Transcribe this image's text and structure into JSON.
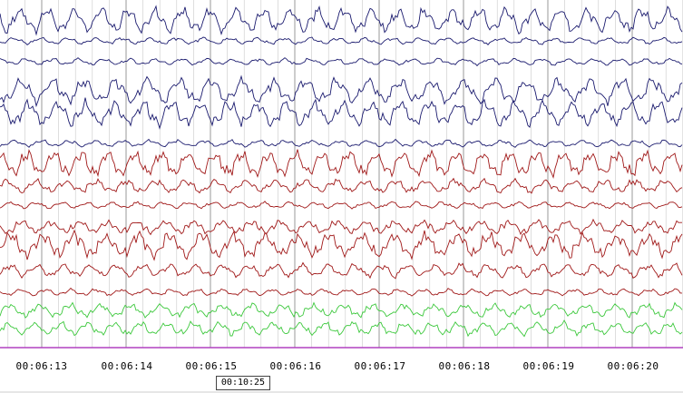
{
  "recording": {
    "epoch_seconds": 8,
    "time_labels": [
      "00:06:13",
      "00:06:14",
      "00:06:15",
      "00:06:16",
      "00:06:17",
      "00:06:18",
      "00:06:19",
      "00:06:20"
    ],
    "cursor_time": "00:10:25"
  },
  "channel_colors": {
    "navy": "#1a1a6e",
    "red": "#a01818",
    "green": "#3cc83c",
    "marker": "#b040c0",
    "grid": "#c8c8c8"
  },
  "channels": [
    {
      "color": "navy",
      "amplitude": "high"
    },
    {
      "color": "navy",
      "amplitude": "low"
    },
    {
      "color": "navy",
      "amplitude": "low"
    },
    {
      "color": "navy",
      "amplitude": "high"
    },
    {
      "color": "navy",
      "amplitude": "high"
    },
    {
      "color": "navy",
      "amplitude": "low"
    },
    {
      "color": "red",
      "amplitude": "high"
    },
    {
      "color": "red",
      "amplitude": "medium"
    },
    {
      "color": "red",
      "amplitude": "low"
    },
    {
      "color": "red",
      "amplitude": "medium"
    },
    {
      "color": "red",
      "amplitude": "high"
    },
    {
      "color": "red",
      "amplitude": "medium"
    },
    {
      "color": "red",
      "amplitude": "low"
    },
    {
      "color": "green",
      "amplitude": "medium"
    },
    {
      "color": "green",
      "amplitude": "medium"
    }
  ]
}
